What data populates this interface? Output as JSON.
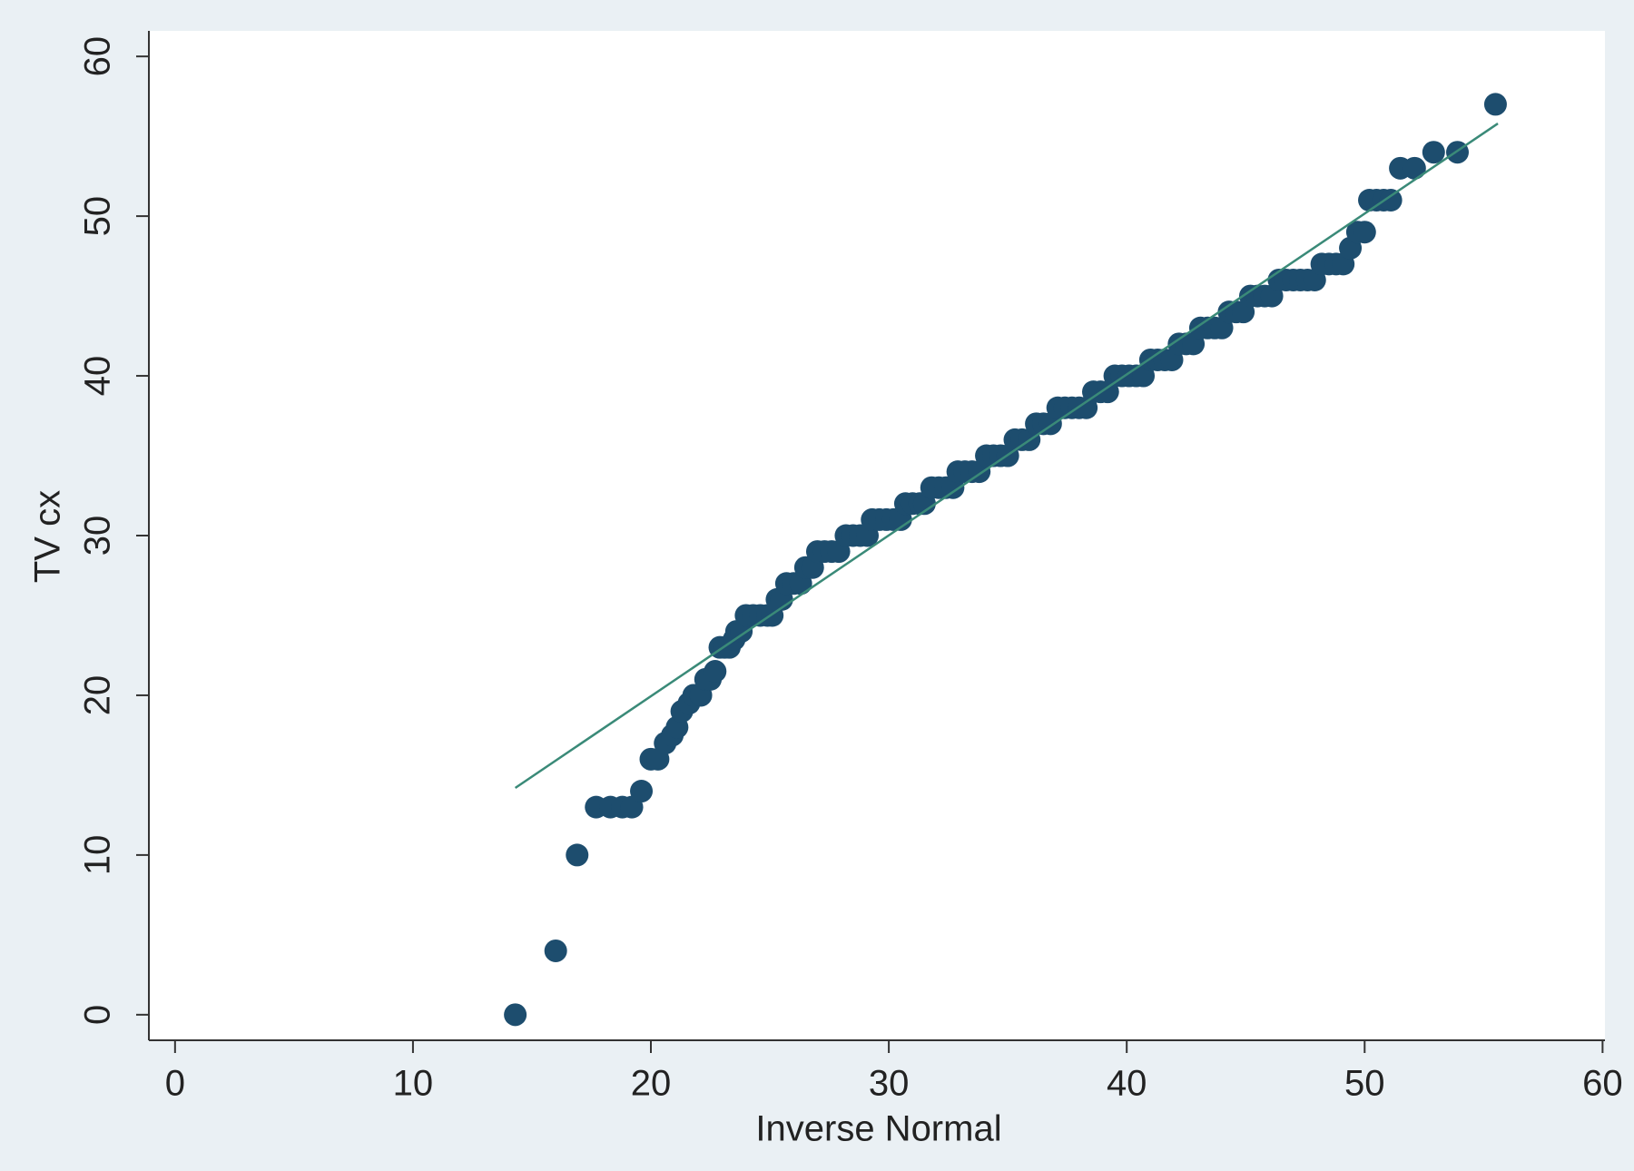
{
  "chart_data": {
    "type": "scatter",
    "xlabel": "Inverse Normal",
    "ylabel": "TV cx",
    "color": "#1d4d6e",
    "x": [
      14.3,
      16,
      16.9,
      17.7,
      18.3,
      18.8,
      19.2,
      19.6,
      20,
      20.3,
      20.6,
      20.9,
      21.1,
      21.3,
      21.6,
      21.8,
      22.1,
      22.3,
      22.5,
      22.7,
      22.9,
      23.1,
      23.3,
      23.5,
      23.6,
      23.8,
      24,
      24.3,
      24.6,
      24.9,
      25.1,
      25.3,
      25.5,
      25.7,
      26,
      26.3,
      26.5,
      26.8,
      27,
      27.3,
      27.6,
      27.9,
      28.2,
      28.5,
      28.8,
      29.1,
      29.3,
      29.6,
      29.9,
      30.2,
      30.5,
      30.7,
      31,
      31.3,
      31.5,
      31.8,
      32.1,
      32.4,
      32.7,
      32.9,
      33.2,
      33.5,
      33.8,
      34.1,
      34.4,
      34.7,
      35,
      35.3,
      35.6,
      35.9,
      36.2,
      36.5,
      36.8,
      37.1,
      37.4,
      37.7,
      38,
      38.3,
      38.6,
      38.9,
      39.2,
      39.5,
      39.8,
      40.1,
      40.4,
      40.7,
      41,
      41.3,
      41.6,
      41.9,
      42.2,
      42.5,
      42.8,
      43.1,
      43.4,
      43.7,
      44,
      44.3,
      44.6,
      44.9,
      45.2,
      45.5,
      45.8,
      46.1,
      46.4,
      46.7,
      47,
      47.3,
      47.6,
      47.9,
      48.2,
      48.5,
      48.8,
      49.1,
      49.4,
      49.7,
      50,
      50.2,
      50.5,
      50.8,
      51.1,
      51.5,
      52.1,
      52.9,
      53.9,
      55.5
    ],
    "values": [
      0,
      4,
      10,
      13,
      13,
      13,
      13,
      14,
      16,
      16,
      17,
      17.5,
      18,
      19,
      19.5,
      20,
      20,
      21,
      21,
      21.5,
      23,
      23,
      23,
      23.5,
      24,
      24,
      25,
      25,
      25,
      25,
      25,
      26,
      26,
      27,
      27,
      27,
      28,
      28,
      29,
      29,
      29,
      29,
      30,
      30,
      30,
      30,
      31,
      31,
      31,
      31,
      31,
      32,
      32,
      32,
      32,
      33,
      33,
      33,
      33,
      34,
      34,
      34,
      34,
      35,
      35,
      35,
      35,
      36,
      36,
      36,
      37,
      37,
      37,
      38,
      38,
      38,
      38,
      38,
      39,
      39,
      39,
      40,
      40,
      40,
      40,
      40,
      41,
      41,
      41,
      41,
      42,
      42,
      42,
      43,
      43,
      43,
      43,
      44,
      44,
      44,
      45,
      45,
      45,
      45,
      46,
      46,
      46,
      46,
      46,
      46,
      47,
      47,
      47,
      47,
      48,
      49,
      49,
      51,
      51,
      51,
      51,
      53,
      53,
      54,
      54,
      57
    ],
    "reference_line": {
      "x": [
        14.3,
        55.6
      ],
      "values": [
        14.2,
        55.8
      ],
      "color": "#3a8a78"
    },
    "xlim": [
      -1.1,
      60.1
    ],
    "ylim": [
      -1.6,
      61.6
    ],
    "xticks": [
      0,
      10,
      20,
      30,
      40,
      50,
      60
    ],
    "yticks": [
      0,
      10,
      20,
      30,
      40,
      50,
      60
    ]
  }
}
